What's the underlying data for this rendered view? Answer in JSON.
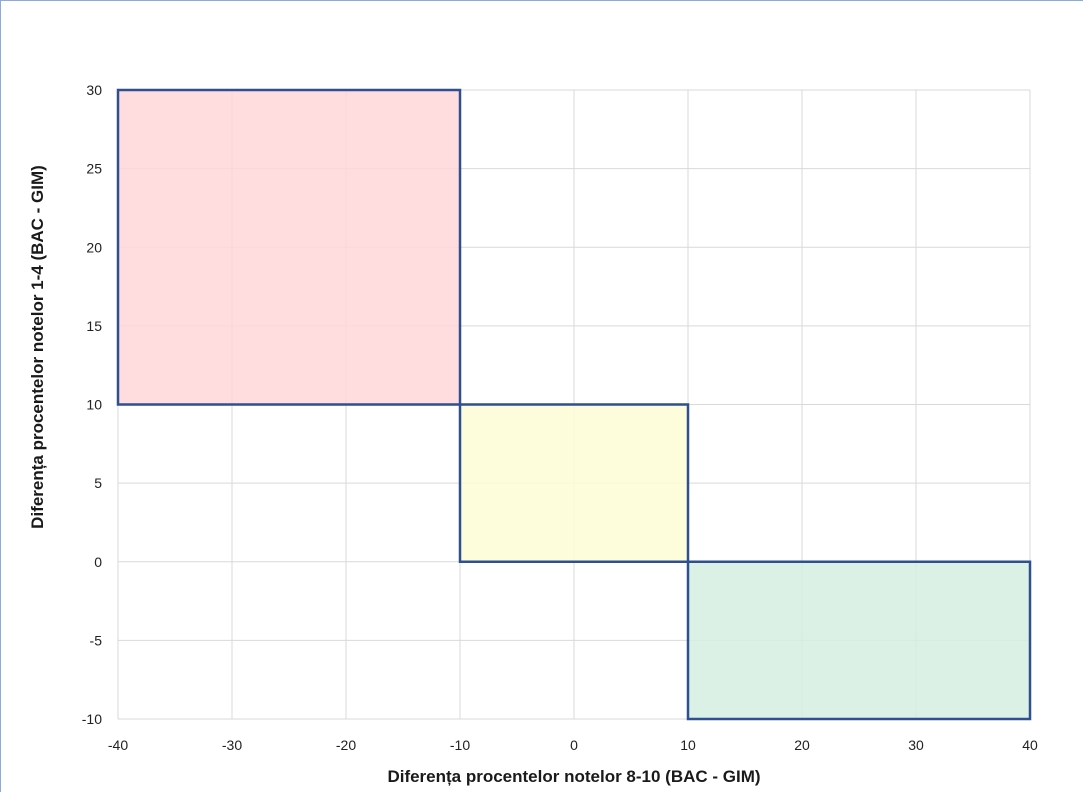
{
  "chart_data": {
    "type": "area",
    "title": "",
    "xlabel": "Diferența procentelor notelor 8-10 (BAC - GIM)",
    "ylabel": "Diferența procentelor notelor 1-4  (BAC - GIM)",
    "xlim": [
      -40,
      40
    ],
    "ylim": [
      -10,
      30
    ],
    "x_ticks": [
      -40,
      -30,
      -20,
      -10,
      0,
      10,
      20,
      30,
      40
    ],
    "y_ticks": [
      -10,
      -5,
      0,
      5,
      10,
      15,
      20,
      25,
      30
    ],
    "grid": true,
    "regions": [
      {
        "x_range": [
          -40,
          -10
        ],
        "y_range": [
          10,
          30
        ],
        "fill": "#ffd7d9"
      },
      {
        "x_range": [
          -10,
          10
        ],
        "y_range": [
          0,
          10
        ],
        "fill": "#fdfdd6"
      },
      {
        "x_range": [
          10,
          40
        ],
        "y_range": [
          -10,
          0
        ],
        "fill": "#d5efe1"
      }
    ],
    "border_color": "#2f4f8f",
    "grid_color": "#d9d9d9"
  }
}
